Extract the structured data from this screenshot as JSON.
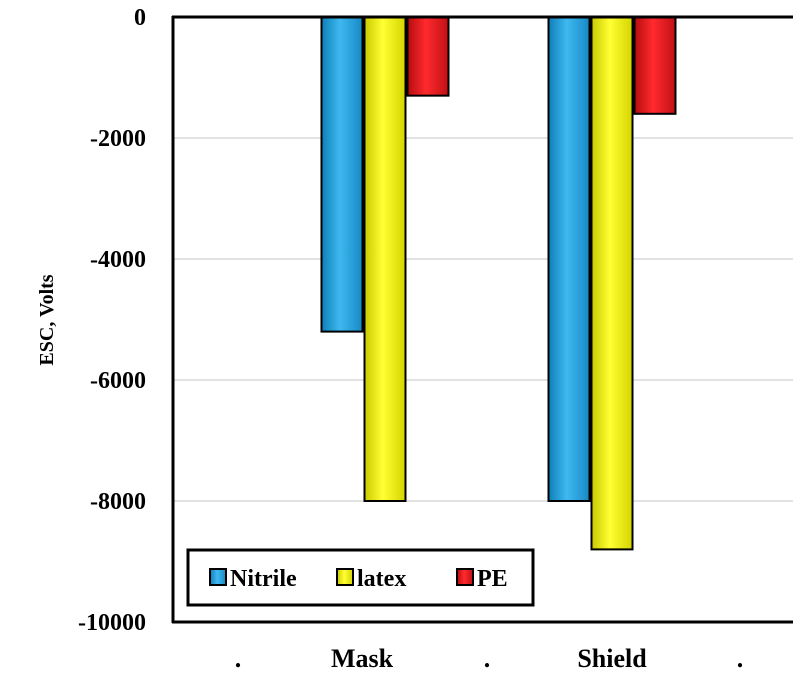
{
  "chart_data": {
    "type": "bar",
    "ylabel": "ESC, Volts",
    "xlabel": "",
    "ylim": [
      -10000,
      0
    ],
    "yticks": [
      0,
      -2000,
      -4000,
      -6000,
      -8000,
      -10000
    ],
    "x_tick_labels": [
      ".",
      "Mask",
      ".",
      "Shield",
      "."
    ],
    "categories": [
      "Mask",
      "Shield"
    ],
    "series": [
      {
        "name": "Nitrile",
        "color": "#1FA3DF",
        "values": [
          -5200,
          -8000
        ]
      },
      {
        "name": "latex",
        "color": "#F2F20A",
        "values": [
          -8000,
          -8800
        ]
      },
      {
        "name": "PE",
        "color": "#E8161A",
        "values": [
          -1300,
          -1600
        ]
      }
    ],
    "grid": true,
    "legend_position": "bottom-left"
  }
}
